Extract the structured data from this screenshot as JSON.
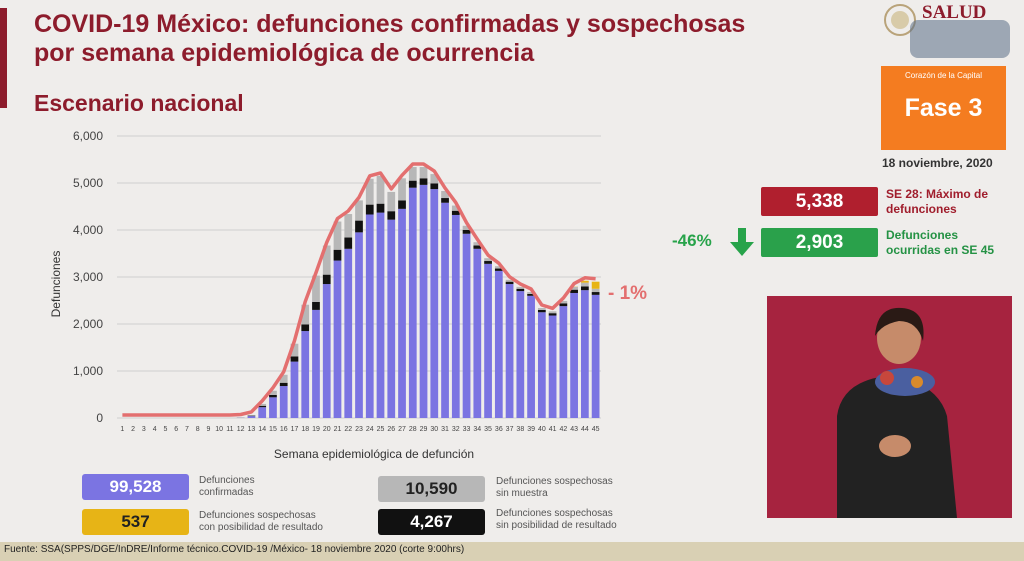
{
  "header": {
    "title_line1": "COVID-19 México: defunciones confirmadas y sospechosas",
    "title_line2": "por semana epidemiológica de ocurrencia",
    "subtitle": "Escenario nacional"
  },
  "logo": {
    "text": "SALUD"
  },
  "phase": {
    "small": "Corazón de la Capital",
    "label": "Fase 3",
    "date": "18 noviembre, 2020"
  },
  "stats": {
    "max_value": "5,338",
    "max_label_1": "SE 28: Máximo de",
    "max_label_2": "defunciones",
    "pct_change": "-46%",
    "recent_value": "2,903",
    "recent_label_1": "Defunciones",
    "recent_label_2": "ocurridas en SE 45",
    "trend_label": "- 1%"
  },
  "legend": {
    "confirmed_value": "99,528",
    "confirmed_l1": "Defunciones",
    "confirmed_l2": "confirmadas",
    "possible_value": "537",
    "possible_l1": "Defunciones sospechosas",
    "possible_l2": "con posibilidad de resultado",
    "nosample_value": "10,590",
    "nosample_l1": "Defunciones sospechosas",
    "nosample_l2": "sin muestra",
    "noresult_value": "4,267",
    "noresult_l1": "Defunciones sospechosas",
    "noresult_l2": "sin posibilidad de resultado"
  },
  "footer": {
    "source": "Fuente: SSA(SPPS/DGE/InDRE/Informe técnico.COVID-19 /México- 18 noviembre 2020 (corte 9:00hrs)"
  },
  "colors": {
    "confirmed": "#7b74e2",
    "no_sample": "#b7b7b7",
    "no_result": "#111111",
    "possible": "#e7b416",
    "total_line": "#e36f6f",
    "title": "#8d1c2c",
    "max_box": "#b01f2e",
    "recent_box": "#2aa14b",
    "phase": "#f47c20"
  },
  "chart_data": {
    "type": "bar",
    "stacked": true,
    "xlabel": "Semana epidemiológica de defunción",
    "ylabel": "Defunciones",
    "ylim": [
      0,
      6000
    ],
    "yticks": [
      "0",
      "1,000",
      "2,000",
      "3,000",
      "4,000",
      "5,000",
      "6,000"
    ],
    "categories": [
      "1",
      "2",
      "3",
      "4",
      "5",
      "6",
      "7",
      "8",
      "9",
      "10",
      "11",
      "12",
      "13",
      "14",
      "15",
      "16",
      "17",
      "18",
      "19",
      "20",
      "21",
      "22",
      "23",
      "24",
      "25",
      "26",
      "27",
      "28",
      "29",
      "30",
      "31",
      "32",
      "33",
      "34",
      "35",
      "36",
      "37",
      "38",
      "39",
      "40",
      "41",
      "42",
      "43",
      "44",
      "45"
    ],
    "series": [
      {
        "key": "confirmed",
        "values": [
          0,
          0,
          0,
          0,
          0,
          0,
          0,
          0,
          0,
          0,
          0,
          5,
          40,
          230,
          440,
          680,
          1200,
          1850,
          2300,
          2850,
          3350,
          3600,
          3950,
          4330,
          4370,
          4220,
          4450,
          4900,
          4960,
          4870,
          4580,
          4320,
          3920,
          3600,
          3280,
          3130,
          2850,
          2700,
          2600,
          2250,
          2180,
          2380,
          2660,
          2720,
          2620
        ]
      },
      {
        "key": "no_result",
        "values": [
          0,
          0,
          0,
          0,
          0,
          0,
          0,
          0,
          0,
          0,
          0,
          2,
          10,
          30,
          50,
          70,
          110,
          140,
          170,
          200,
          230,
          240,
          250,
          210,
          190,
          180,
          180,
          150,
          140,
          120,
          100,
          90,
          80,
          70,
          60,
          50,
          50,
          50,
          40,
          50,
          50,
          60,
          70,
          80,
          60
        ]
      },
      {
        "key": "no_sample",
        "values": [
          0,
          0,
          0,
          0,
          0,
          0,
          0,
          0,
          0,
          0,
          0,
          3,
          15,
          40,
          90,
          170,
          270,
          420,
          560,
          620,
          600,
          500,
          430,
          550,
          590,
          410,
          470,
          290,
          240,
          200,
          150,
          110,
          90,
          70,
          60,
          50,
          40,
          40,
          40,
          40,
          40,
          50,
          60,
          80,
          70
        ]
      },
      {
        "key": "possible",
        "values": [
          0,
          0,
          0,
          0,
          0,
          0,
          0,
          0,
          0,
          0,
          0,
          0,
          0,
          0,
          0,
          0,
          0,
          0,
          0,
          0,
          0,
          0,
          0,
          0,
          0,
          0,
          0,
          0,
          0,
          0,
          0,
          0,
          0,
          0,
          0,
          0,
          0,
          0,
          0,
          0,
          0,
          0,
          5,
          40,
          150
        ]
      }
    ]
  }
}
